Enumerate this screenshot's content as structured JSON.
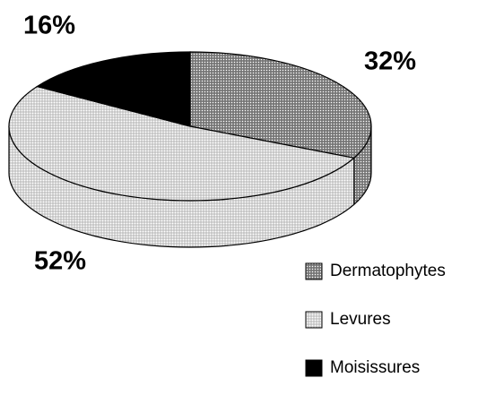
{
  "chart_data": {
    "type": "pie3d",
    "categories": [
      "Dermatophytes",
      "Levures",
      "Moisissures"
    ],
    "values": [
      32,
      52,
      16
    ],
    "value_labels": [
      "32%",
      "52%",
      "16%"
    ],
    "colors": [
      "#8c8c8c",
      "#dcdcdc",
      "#000000"
    ]
  }
}
